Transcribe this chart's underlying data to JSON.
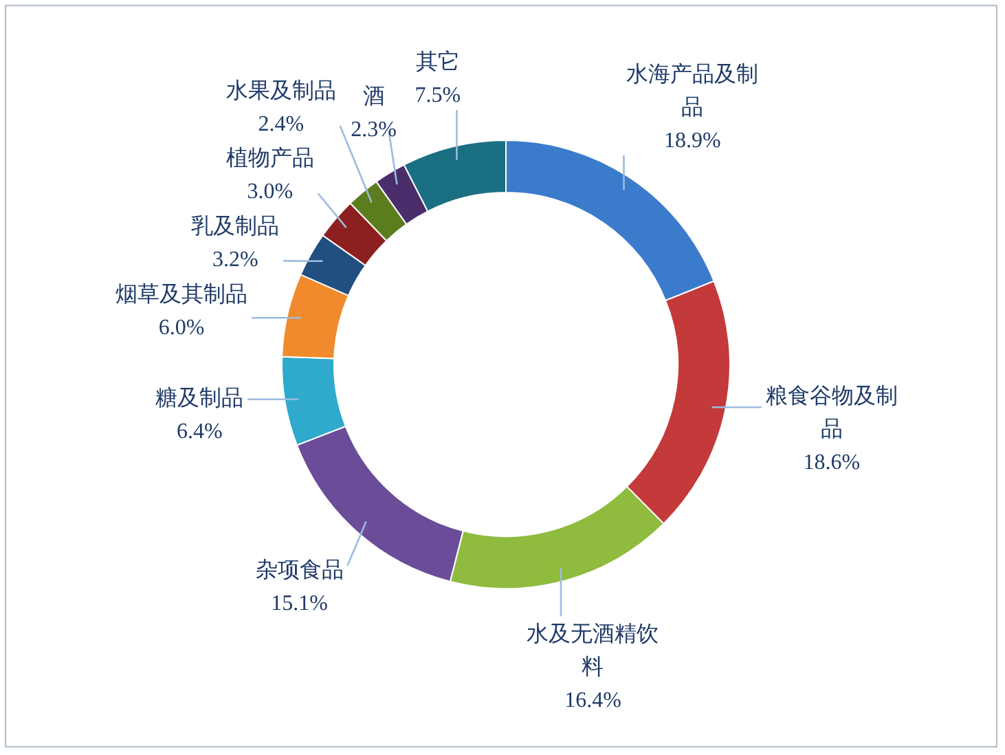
{
  "chart_data": {
    "type": "donut",
    "categories": [
      "水海产品及制品",
      "粮食谷物及制品",
      "水及无酒精饮料",
      "杂项食品",
      "糖及制品",
      "烟草及其制品",
      "乳及制品",
      "植物产品",
      "水果及制品",
      "酒",
      "其它"
    ],
    "values": [
      18.9,
      18.6,
      16.4,
      15.1,
      6.4,
      6.0,
      3.2,
      3.0,
      2.4,
      2.3,
      7.5
    ],
    "value_labels": [
      "18.9%",
      "18.6%",
      "16.4%",
      "15.1%",
      "6.4%",
      "6.0%",
      "3.2%",
      "3.0%",
      "2.4%",
      "2.3%",
      "7.5%"
    ],
    "colors": [
      "#3b7bcc",
      "#c43a3a",
      "#8fbb3e",
      "#6a4c98",
      "#2fa9cc",
      "#f08a2c",
      "#214f80",
      "#8c2020",
      "#5b7d1e",
      "#4a2e6c",
      "#1b6f82"
    ],
    "legend": false
  }
}
